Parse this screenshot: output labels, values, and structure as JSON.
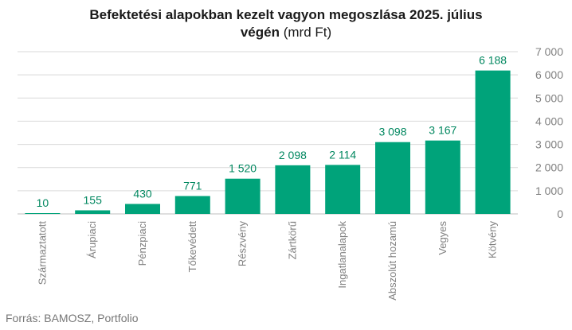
{
  "title": {
    "line1": "Befektetési alapokban kezelt vagyon megoszlása 2025. július",
    "line2_bold": "végén",
    "line2_unit": " (mrd Ft)"
  },
  "source": "Forrás: BAMOSZ, Portfolio",
  "colors": {
    "bar": "#00a37a",
    "label": "#00875f",
    "axis_text": "#808080",
    "grid": "#d9d9d9"
  },
  "chart_data": {
    "type": "bar",
    "title": "Befektetési alapokban kezelt vagyon megoszlása 2025. július végén (mrd Ft)",
    "categories": [
      "Származtatott",
      "Árupiaci",
      "Pénzpiaci",
      "Tőkevédett",
      "Részvény",
      "Zártkörű",
      "Ingatlanalapok",
      "Abszolút hozamú",
      "Vegyes",
      "Kötvény"
    ],
    "values": [
      10,
      155,
      430,
      771,
      1520,
      2098,
      2114,
      3098,
      3167,
      6188
    ],
    "value_labels": [
      "10",
      "155",
      "430",
      "771",
      "1 520",
      "2 098",
      "2 114",
      "3 098",
      "3 167",
      "6 188"
    ],
    "ylim": [
      0,
      7000
    ],
    "yticks": [
      0,
      1000,
      2000,
      3000,
      4000,
      5000,
      6000,
      7000
    ],
    "ytick_labels": [
      "0",
      "1 000",
      "2 000",
      "3 000",
      "4 000",
      "5 000",
      "6 000",
      "7 000"
    ],
    "yaxis_side": "right",
    "grid": true,
    "xlabel": "",
    "ylabel": ""
  }
}
